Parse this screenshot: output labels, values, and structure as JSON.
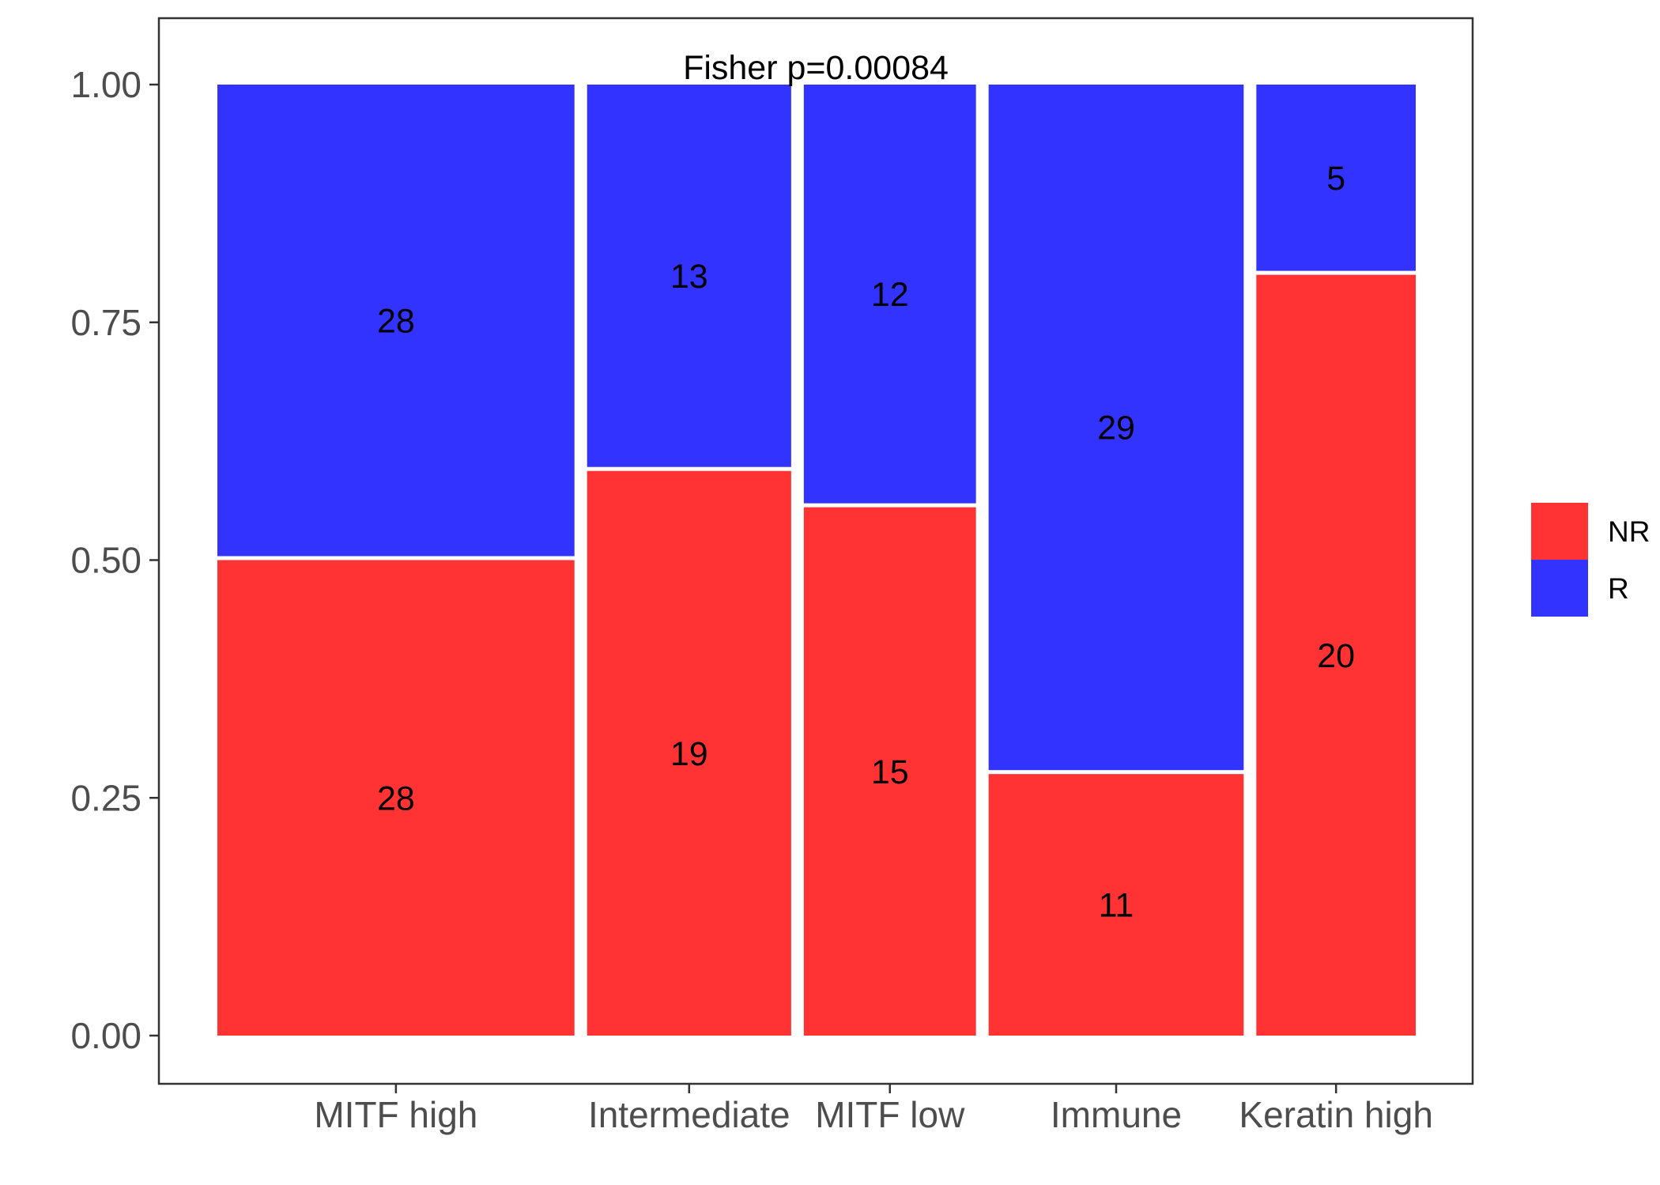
{
  "chart_data": {
    "type": "bar",
    "subtype": "mosaic",
    "title": "",
    "xlabel": "",
    "ylabel": "",
    "annotation": "Fisher p=0.00084",
    "categories": [
      "MITF high",
      "Intermediate",
      "MITF low",
      "Immune",
      "Keratin high"
    ],
    "series": [
      {
        "name": "NR",
        "color": "#FF3333",
        "values": [
          28,
          19,
          15,
          11,
          20
        ]
      },
      {
        "name": "R",
        "color": "#3333FF",
        "values": [
          28,
          13,
          12,
          29,
          5
        ]
      }
    ],
    "ylim": [
      0,
      1
    ],
    "yticks": [
      "0.00",
      "0.25",
      "0.50",
      "0.75",
      "1.00"
    ],
    "grid": false,
    "legend": {
      "position": "right",
      "entries": [
        "NR",
        "R"
      ]
    }
  }
}
